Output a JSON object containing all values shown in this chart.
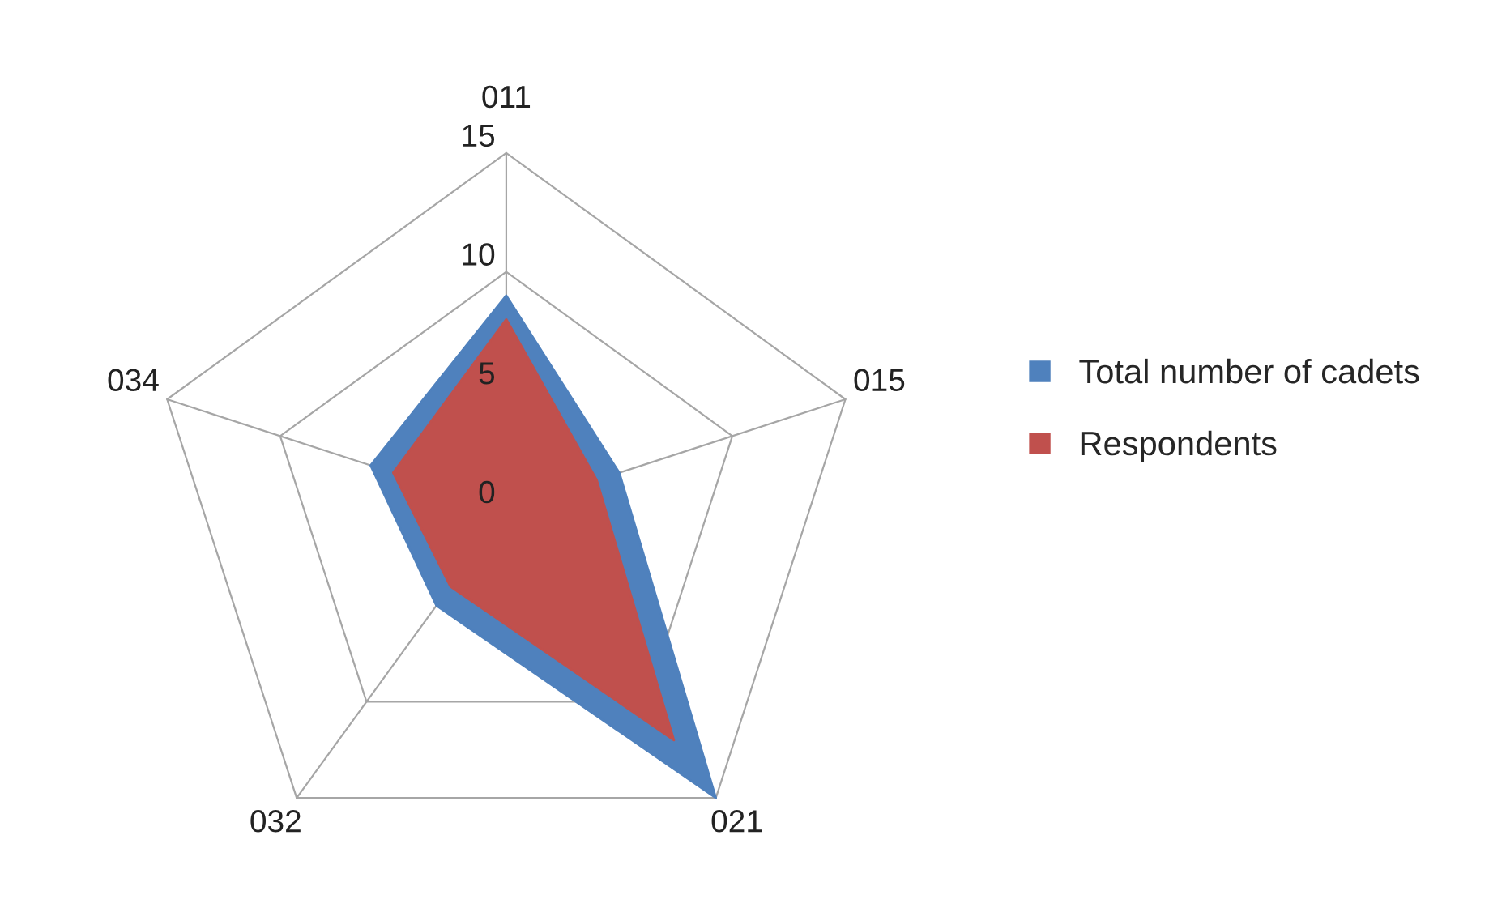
{
  "chart_data": {
    "type": "radar",
    "categories": [
      "011",
      "015",
      "021",
      "032",
      "034"
    ],
    "series": [
      {
        "name": "Total number of cadets",
        "color": "#4f81bd",
        "values": [
          9,
          5,
          15,
          5,
          6
        ]
      },
      {
        "name": "Respondents",
        "color": "#c0504d",
        "values": [
          8,
          4,
          12,
          4,
          5
        ]
      }
    ],
    "ylim": [
      0,
      15
    ],
    "yticks": [
      0,
      5,
      10,
      15
    ],
    "grid": true,
    "legend": "right"
  }
}
